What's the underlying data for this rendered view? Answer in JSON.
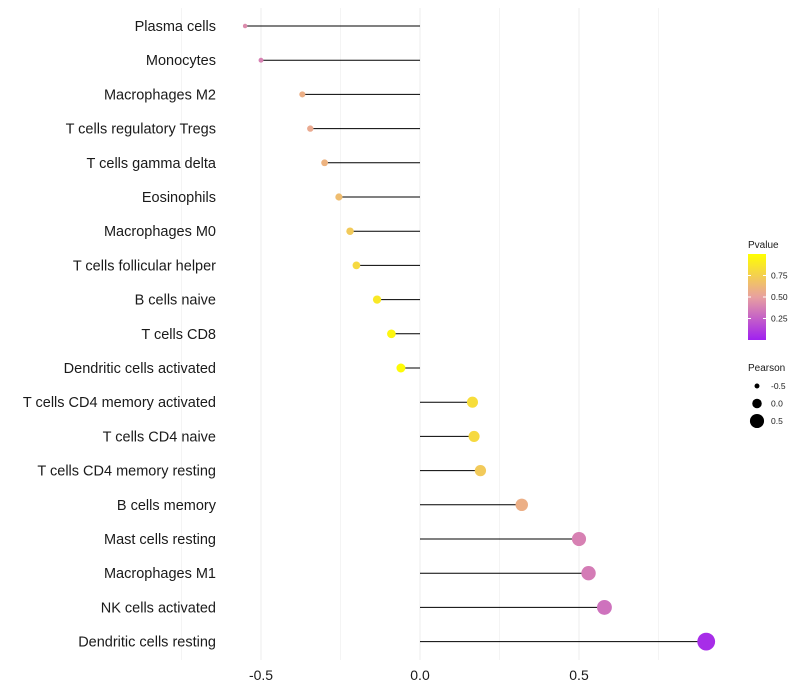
{
  "chart_data": {
    "type": "lollipop",
    "categories": [
      "Plasma cells",
      "Monocytes",
      "Macrophages M2",
      "T cells regulatory  Tregs",
      "T cells gamma delta",
      "Eosinophils",
      "Macrophages M0",
      "T cells follicular helper",
      "B cells naive",
      "T cells CD8",
      "Dendritic cells activated",
      "T cells CD4 memory activated",
      "T cells CD4 naive",
      "T cells CD4 memory resting",
      "B cells memory",
      "Mast cells resting",
      "Macrophages M1",
      "NK cells activated",
      "Dendritic cells resting"
    ],
    "pearson": [
      -0.55,
      -0.5,
      -0.37,
      -0.345,
      -0.3,
      -0.255,
      -0.22,
      -0.2,
      -0.135,
      -0.09,
      -0.06,
      0.165,
      0.17,
      0.19,
      0.32,
      0.5,
      0.53,
      0.58,
      0.9
    ],
    "pvalue": [
      0.42,
      0.38,
      0.58,
      0.55,
      0.6,
      0.65,
      0.72,
      0.8,
      0.88,
      0.95,
      0.98,
      0.82,
      0.8,
      0.72,
      0.58,
      0.38,
      0.36,
      0.32,
      0.05
    ],
    "xlim": [
      -0.62,
      0.95
    ],
    "xticks": [
      -0.5,
      0.0,
      0.5
    ],
    "xtick_labels": [
      "-0.5",
      "0.0",
      "0.5"
    ],
    "xlabel": "",
    "ylabel": "",
    "title": "",
    "legend": {
      "color_title": "Pvalue",
      "color_range": [
        0.0,
        1.0
      ],
      "color_ticks": [
        0.25,
        0.5,
        0.75
      ],
      "color_tick_labels": [
        "0.25",
        "0.50",
        "0.75"
      ],
      "color_low": "#a020f0",
      "color_mid": "#e8a0a0",
      "color_high": "#ffff00",
      "size_title": "Pearson",
      "size_values": [
        -0.5,
        0.0,
        0.5
      ],
      "size_labels": [
        "-0.5",
        "0.0",
        "0.5"
      ]
    },
    "colors": {
      "segment": "#000000",
      "grid": "#ececec"
    }
  }
}
